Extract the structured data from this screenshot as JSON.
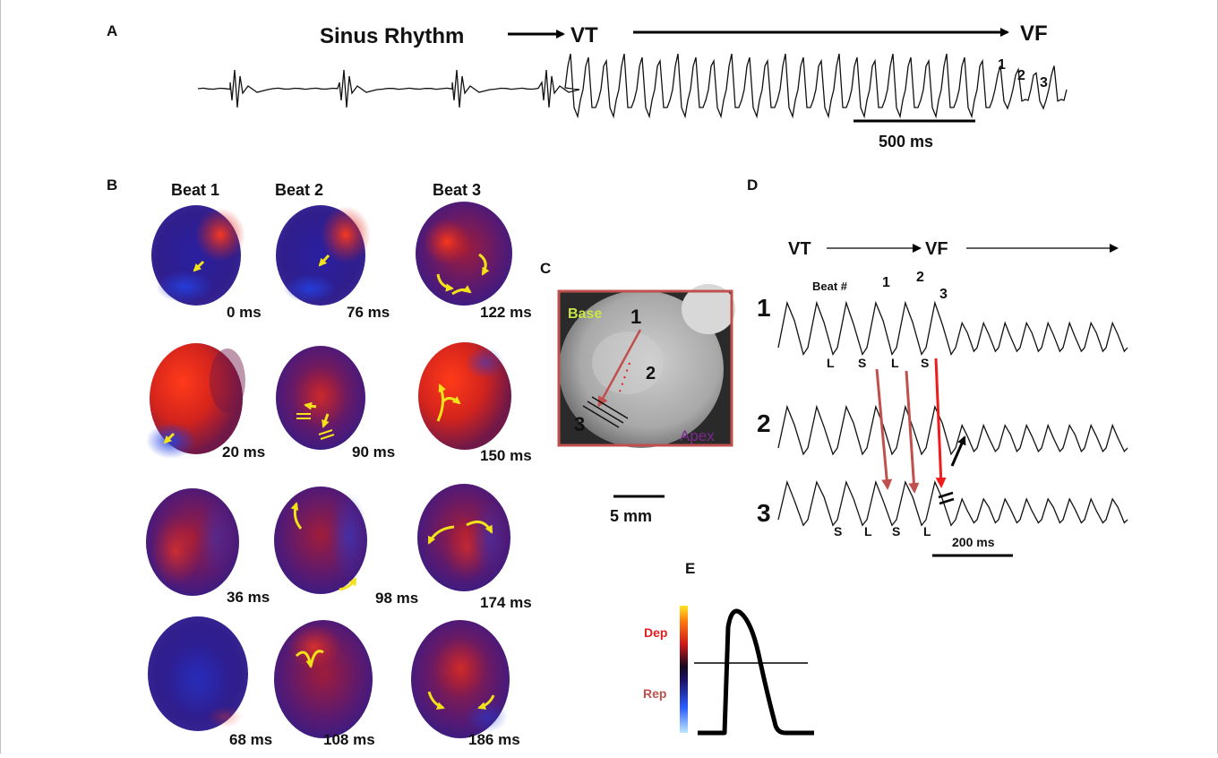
{
  "panels": {
    "a": "A",
    "b": "B",
    "c": "C",
    "d": "D",
    "e": "E"
  },
  "panel_a": {
    "sinus": "Sinus Rhythm",
    "vt": "VT",
    "vf": "VF",
    "beat_labels": [
      "1",
      "2",
      "3"
    ],
    "scalebar": "500 ms"
  },
  "panel_b": {
    "columns": [
      "Beat 1",
      "Beat 2",
      "Beat 3"
    ],
    "times": [
      [
        "0 ms",
        "76 ms",
        "122 ms"
      ],
      [
        "20 ms",
        "90 ms",
        "150 ms"
      ],
      [
        "36 ms",
        "98 ms",
        "174 ms"
      ],
      [
        "68 ms",
        "108 ms",
        "186 ms"
      ]
    ]
  },
  "panel_c": {
    "base": "Base",
    "apex": "Apex",
    "sites": [
      "1",
      "2",
      "3"
    ],
    "scalebar": "5 mm",
    "colors": {
      "border": "#c0504d",
      "base": "#c8e64a",
      "apex": "#7a2a8c"
    }
  },
  "panel_d": {
    "vt": "VT",
    "vf": "VF",
    "beat_header": "Beat #",
    "beat_numbers": [
      "1",
      "2",
      "3"
    ],
    "trace_labels": [
      "1",
      "2",
      "3"
    ],
    "trace1_marks": [
      "L",
      "S",
      "L",
      "S"
    ],
    "trace3_marks": [
      "S",
      "L",
      "S",
      "L"
    ],
    "scalebar": "200 ms"
  },
  "panel_e": {
    "dep": "Dep",
    "rep": "Rep",
    "colors": {
      "dep": "#e02020",
      "rep": "#c0504d"
    }
  }
}
